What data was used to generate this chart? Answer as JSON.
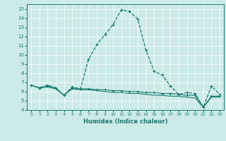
{
  "xlabel": "Humidex (Indice chaleur)",
  "xlim": [
    -0.5,
    23.5
  ],
  "ylim": [
    4,
    15.5
  ],
  "yticks": [
    4,
    5,
    6,
    7,
    8,
    9,
    10,
    11,
    12,
    13,
    14,
    15
  ],
  "xtick_labels": [
    "0",
    "1",
    "2",
    "3",
    "4",
    "5",
    "6",
    "7",
    "8",
    "9",
    "10",
    "11",
    "12",
    "13",
    "14",
    "15",
    "16",
    "17",
    "18",
    "19",
    "20",
    "21",
    "22",
    "23"
  ],
  "background_color": "#cceae8",
  "line_color": "#1a7a6e",
  "series1": [
    6.7,
    6.4,
    6.7,
    6.4,
    5.6,
    6.5,
    6.3,
    9.5,
    11.1,
    12.2,
    13.3,
    14.9,
    14.7,
    13.9,
    10.5,
    8.2,
    7.8,
    6.6,
    5.7,
    5.9,
    5.8,
    4.3,
    6.6,
    5.7
  ],
  "series2": [
    6.7,
    6.4,
    6.6,
    6.4,
    5.6,
    6.4,
    6.3,
    6.3,
    6.2,
    6.2,
    6.1,
    6.1,
    6.0,
    6.0,
    5.9,
    5.9,
    5.8,
    5.8,
    5.7,
    5.6,
    5.6,
    4.3,
    5.5,
    5.5
  ],
  "series3": [
    6.7,
    6.4,
    6.5,
    6.3,
    5.6,
    6.3,
    6.2,
    6.2,
    6.1,
    6.0,
    5.9,
    5.9,
    5.8,
    5.8,
    5.7,
    5.6,
    5.6,
    5.5,
    5.5,
    5.4,
    5.3,
    4.3,
    5.4,
    5.4
  ]
}
